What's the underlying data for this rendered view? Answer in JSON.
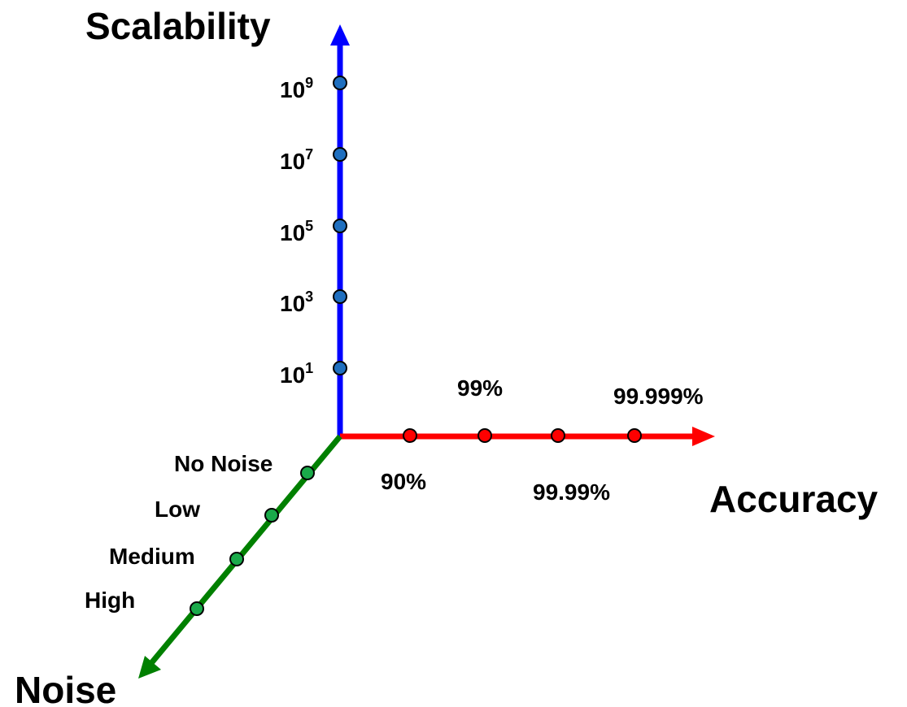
{
  "colors": {
    "scalability": "#0000ff",
    "scalability_dots": "#1f6fbf",
    "accuracy": "#ff0000",
    "accuracy_dots": "#ff0000",
    "noise": "#008000",
    "noise_dots": "#1aaa4a"
  },
  "axes": {
    "scalability": {
      "title": "Scalability",
      "ticks": [
        {
          "base": "10",
          "exp": "1"
        },
        {
          "base": "10",
          "exp": "3"
        },
        {
          "base": "10",
          "exp": "5"
        },
        {
          "base": "10",
          "exp": "7"
        },
        {
          "base": "10",
          "exp": "9"
        }
      ]
    },
    "accuracy": {
      "title": "Accuracy",
      "ticks": [
        "90%",
        "99%",
        "99.99%",
        "99.999%"
      ]
    },
    "noise": {
      "title": "Noise",
      "ticks": [
        "No Noise",
        "Low",
        "Medium",
        "High"
      ]
    }
  }
}
